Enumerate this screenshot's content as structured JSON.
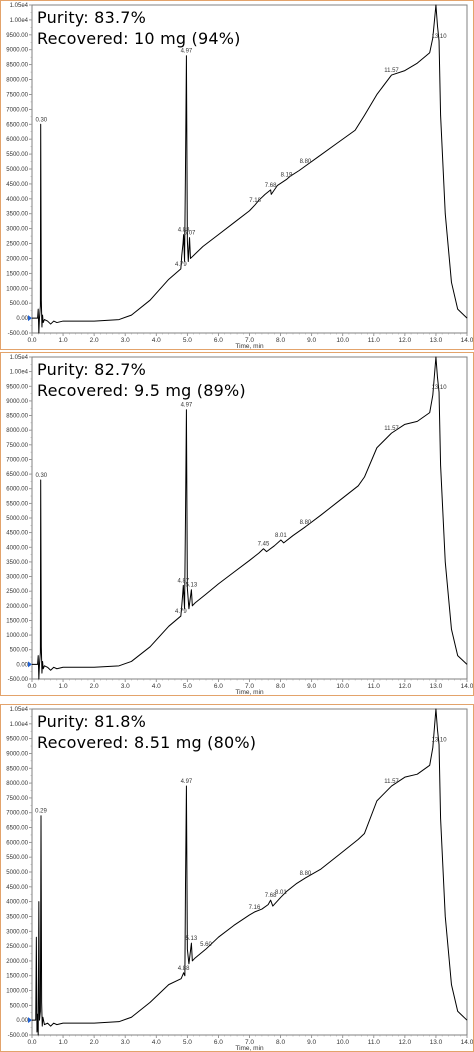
{
  "chart_data": [
    {
      "type": "line",
      "purity_text": "Purity: 83.7%",
      "recovered_text": "Recovered: 10 mg (94%)",
      "xlabel": "Time, min",
      "xlim": [
        0,
        14.0
      ],
      "ylim": [
        -500,
        10500
      ],
      "xticks": [
        "0.0",
        "1.0",
        "2.0",
        "3.0",
        "4.0",
        "5.0",
        "6.0",
        "7.0",
        "8.0",
        "9.0",
        "10.0",
        "11.0",
        "12.0",
        "13.0",
        "14.0"
      ],
      "yticks": [
        "-500.00",
        "0.00",
        "500.00",
        "1000.00",
        "1500.00",
        "2000.00",
        "2500.00",
        "3000.00",
        "3500.00",
        "4000.00",
        "4500.00",
        "5000.00",
        "5500.00",
        "6000.00",
        "6500.00",
        "7000.00",
        "7500.00",
        "8000.00",
        "8500.00",
        "9000.00",
        "9500.00",
        "1.00e4",
        "1.05e4"
      ],
      "x": [
        0,
        0.18,
        0.2,
        0.22,
        0.24,
        0.27,
        0.28,
        0.3,
        0.32,
        0.34,
        0.36,
        0.4,
        0.5,
        0.6,
        0.7,
        0.8,
        1.0,
        2.0,
        2.8,
        3.2,
        3.8,
        4.4,
        4.79,
        4.82,
        4.86,
        4.88,
        4.91,
        4.94,
        4.97,
        5.0,
        5.03,
        5.07,
        5.1,
        5.2,
        5.5,
        6.0,
        6.5,
        7.0,
        7.18,
        7.3,
        7.5,
        7.68,
        7.7,
        7.9,
        8.19,
        8.3,
        8.6,
        8.8,
        9.2,
        9.8,
        10.4,
        10.7,
        11.1,
        11.57,
        12.0,
        12.4,
        12.8,
        12.9,
        13.0,
        13.05,
        13.1,
        13.15,
        13.3,
        13.5,
        13.7,
        14.0
      ],
      "y": [
        0,
        0,
        300,
        -650,
        0,
        400,
        6500,
        600,
        -300,
        100,
        -150,
        -50,
        -100,
        -200,
        -100,
        -150,
        -100,
        -100,
        -50,
        100,
        600,
        1300,
        1650,
        2100,
        2500,
        2800,
        1900,
        5000,
        8800,
        2600,
        1900,
        2700,
        2000,
        2100,
        2400,
        2800,
        3200,
        3600,
        3800,
        3950,
        4150,
        4300,
        4150,
        4450,
        4650,
        4750,
        4950,
        5100,
        5400,
        5850,
        6300,
        6800,
        7500,
        8150,
        8300,
        8550,
        8900,
        9400,
        10500,
        9800,
        9300,
        6800,
        3500,
        1200,
        300,
        0
      ],
      "peaks": [
        {
          "x": 0.3,
          "label": "0.30"
        },
        {
          "x": 4.79,
          "label": "4.79"
        },
        {
          "x": 4.88,
          "label": "4.88"
        },
        {
          "x": 4.97,
          "label": "4.97"
        },
        {
          "x": 5.07,
          "label": "5.07"
        },
        {
          "x": 7.18,
          "label": "7.18"
        },
        {
          "x": 7.68,
          "label": "7.68"
        },
        {
          "x": 8.19,
          "label": "8.19"
        },
        {
          "x": 8.8,
          "label": "8.80"
        },
        {
          "x": 11.57,
          "label": "11.57"
        },
        {
          "x": 13.1,
          "label": "13.10"
        }
      ]
    },
    {
      "type": "line",
      "purity_text": "Purity: 82.7%",
      "recovered_text": "Recovered: 9.5 mg (89%)",
      "xlabel": "Time, min",
      "xlim": [
        0,
        14.0
      ],
      "ylim": [
        -500,
        10500
      ],
      "xticks": [
        "0.0",
        "1.0",
        "2.0",
        "3.0",
        "4.0",
        "5.0",
        "6.0",
        "7.0",
        "8.0",
        "9.0",
        "10.0",
        "11.0",
        "12.0",
        "13.0",
        "14.0"
      ],
      "yticks": [
        "-500.00",
        "0.00",
        "500.00",
        "1000.00",
        "1500.00",
        "2000.00",
        "2500.00",
        "3000.00",
        "3500.00",
        "4000.00",
        "4500.00",
        "5000.00",
        "5500.00",
        "6000.00",
        "6500.00",
        "7000.00",
        "7500.00",
        "8000.00",
        "8500.00",
        "9000.00",
        "9500.00",
        "1.00e4",
        "1.05e4"
      ],
      "x": [
        0,
        0.18,
        0.2,
        0.22,
        0.24,
        0.27,
        0.28,
        0.3,
        0.32,
        0.34,
        0.36,
        0.4,
        0.5,
        0.6,
        0.7,
        0.8,
        1.0,
        2.0,
        2.8,
        3.2,
        3.8,
        4.4,
        4.79,
        4.82,
        4.85,
        4.87,
        4.91,
        4.94,
        4.97,
        5.0,
        5.05,
        5.13,
        5.16,
        5.25,
        5.6,
        6.0,
        6.5,
        7.0,
        7.3,
        7.45,
        7.55,
        7.8,
        8.01,
        8.1,
        8.4,
        8.8,
        9.3,
        9.9,
        10.5,
        10.7,
        11.1,
        11.57,
        12.0,
        12.4,
        12.8,
        12.9,
        13.0,
        13.05,
        13.1,
        13.15,
        13.3,
        13.5,
        13.7,
        14.0
      ],
      "y": [
        0,
        0,
        300,
        -650,
        0,
        400,
        6300,
        600,
        -300,
        100,
        -150,
        -50,
        -100,
        -200,
        -100,
        -150,
        -100,
        -100,
        -50,
        100,
        600,
        1300,
        1650,
        2000,
        2400,
        2700,
        1900,
        5000,
        8700,
        2600,
        1900,
        2550,
        2000,
        2100,
        2400,
        2750,
        3150,
        3550,
        3800,
        3950,
        3850,
        4050,
        4250,
        4150,
        4400,
        4700,
        5100,
        5600,
        6100,
        6400,
        7400,
        7900,
        8200,
        8300,
        8600,
        9200,
        10500,
        9800,
        9300,
        6800,
        3500,
        1200,
        300,
        0
      ],
      "peaks": [
        {
          "x": 0.3,
          "label": "0.30"
        },
        {
          "x": 4.79,
          "label": "4.79"
        },
        {
          "x": 4.87,
          "label": "4.87"
        },
        {
          "x": 4.97,
          "label": "4.97"
        },
        {
          "x": 5.13,
          "label": "5.13"
        },
        {
          "x": 7.45,
          "label": "7.45"
        },
        {
          "x": 8.01,
          "label": "8.01"
        },
        {
          "x": 8.8,
          "label": "8.80"
        },
        {
          "x": 11.57,
          "label": "11.57"
        },
        {
          "x": 13.1,
          "label": "13.10"
        }
      ]
    },
    {
      "type": "line",
      "purity_text": "Purity: 81.8%",
      "recovered_text": "Recovered: 8.51 mg (80%)",
      "xlabel": "Time, min",
      "xlim": [
        0,
        14.0
      ],
      "ylim": [
        -500,
        10500
      ],
      "xticks": [
        "0.0",
        "1.0",
        "2.0",
        "3.0",
        "4.0",
        "5.0",
        "6.0",
        "7.0",
        "8.0",
        "9.0",
        "10.0",
        "11.0",
        "12.0",
        "13.0",
        "14.0"
      ],
      "yticks": [
        "-500.00",
        "0.00",
        "500.00",
        "1000.00",
        "1500.00",
        "2000.00",
        "2500.00",
        "3000.00",
        "3500.00",
        "4000.00",
        "4500.00",
        "5000.00",
        "5500.00",
        "6000.00",
        "6500.00",
        "7000.00",
        "7500.00",
        "8000.00",
        "8500.00",
        "9000.00",
        "9500.00",
        "1.00e4",
        "1.05e4"
      ],
      "x": [
        0,
        0.12,
        0.14,
        0.16,
        0.18,
        0.2,
        0.22,
        0.24,
        0.27,
        0.29,
        0.31,
        0.33,
        0.35,
        0.4,
        0.5,
        0.6,
        0.7,
        0.8,
        1.0,
        2.0,
        2.8,
        3.2,
        3.8,
        4.4,
        4.8,
        4.88,
        4.92,
        4.94,
        4.97,
        5.0,
        5.05,
        5.13,
        5.16,
        5.25,
        5.6,
        6.0,
        6.5,
        7.0,
        7.16,
        7.4,
        7.6,
        7.68,
        7.75,
        8.01,
        8.2,
        8.5,
        8.8,
        9.3,
        9.9,
        10.5,
        10.7,
        11.1,
        11.57,
        12.0,
        12.4,
        12.8,
        12.9,
        13.0,
        13.05,
        13.1,
        13.15,
        13.3,
        13.5,
        13.7,
        14.0
      ],
      "y": [
        0,
        0,
        2800,
        -400,
        200,
        -650,
        4000,
        0,
        300,
        6900,
        600,
        -200,
        100,
        -150,
        -100,
        -200,
        -100,
        -150,
        -100,
        -100,
        -50,
        100,
        600,
        1200,
        1400,
        1600,
        1500,
        4500,
        7900,
        2400,
        1900,
        2600,
        2000,
        2100,
        2400,
        2800,
        3200,
        3550,
        3650,
        3750,
        3900,
        4050,
        3850,
        4150,
        4350,
        4600,
        4800,
        5100,
        5600,
        6100,
        6300,
        7400,
        7900,
        8200,
        8300,
        8600,
        9200,
        10500,
        9800,
        9300,
        6800,
        3500,
        1200,
        300,
        0
      ],
      "peaks": [
        {
          "x": 0.29,
          "label": "0.29"
        },
        {
          "x": 4.88,
          "label": "4.88"
        },
        {
          "x": 4.97,
          "label": "4.97"
        },
        {
          "x": 5.13,
          "label": "5.13"
        },
        {
          "x": 5.6,
          "label": "5.60"
        },
        {
          "x": 7.16,
          "label": "7.16"
        },
        {
          "x": 7.68,
          "label": "7.68"
        },
        {
          "x": 8.01,
          "label": "8.01"
        },
        {
          "x": 8.8,
          "label": "8.80"
        },
        {
          "x": 11.57,
          "label": "11.57"
        },
        {
          "x": 13.1,
          "label": "13.10"
        }
      ]
    }
  ]
}
